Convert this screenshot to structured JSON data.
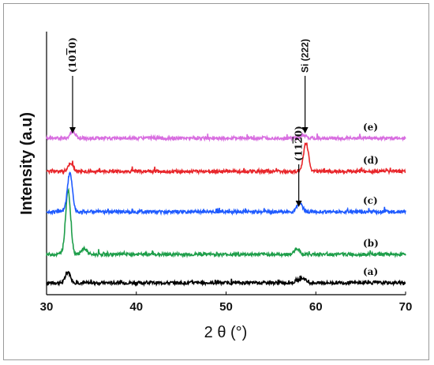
{
  "chart_data": {
    "type": "line",
    "xlabel": "2 θ (°)",
    "ylabel": "Intensity (a.u)",
    "xlim": [
      30,
      70
    ],
    "x_ticks": [
      "30",
      "40",
      "50",
      "60",
      "70"
    ],
    "grid": false,
    "legend": "none",
    "series": [
      {
        "name": "(a)",
        "color": "#000000",
        "offset": 0.0,
        "peaks": [
          [
            32.4,
            0.45
          ],
          [
            58.6,
            0.18
          ],
          [
            58.0,
            0.1
          ]
        ]
      },
      {
        "name": "(b)",
        "color": "#1e9e4a",
        "offset": 0.12,
        "peaks": [
          [
            32.4,
            2.7
          ],
          [
            34.2,
            0.25
          ],
          [
            57.9,
            0.25
          ]
        ]
      },
      {
        "name": "(c)",
        "color": "#1f5bff",
        "offset": 0.3,
        "peaks": [
          [
            32.6,
            1.6
          ],
          [
            58.2,
            0.4
          ]
        ]
      },
      {
        "name": "(d)",
        "color": "#e8262b",
        "offset": 0.47,
        "peaks": [
          [
            32.7,
            0.35
          ],
          [
            58.9,
            1.2
          ]
        ]
      },
      {
        "name": "(e)",
        "color": "#d86ee0",
        "offset": 0.61,
        "peaks": [
          [
            32.9,
            0.28
          ],
          [
            58.6,
            0.15
          ]
        ]
      }
    ],
    "annotations": [
      {
        "text": "(10̅1̅0)",
        "label_main": "(10",
        "label_bar": "1",
        "label_end": "0)",
        "x": 32.9,
        "target": "(e)"
      },
      {
        "text": "Si (222)",
        "x": 58.8,
        "target": "(e)"
      },
      {
        "text": "(11̅2̅0)",
        "label_main": "(11",
        "label_bar": "2",
        "label_end": "0)",
        "x": 58.1,
        "target": "(c)"
      }
    ]
  }
}
